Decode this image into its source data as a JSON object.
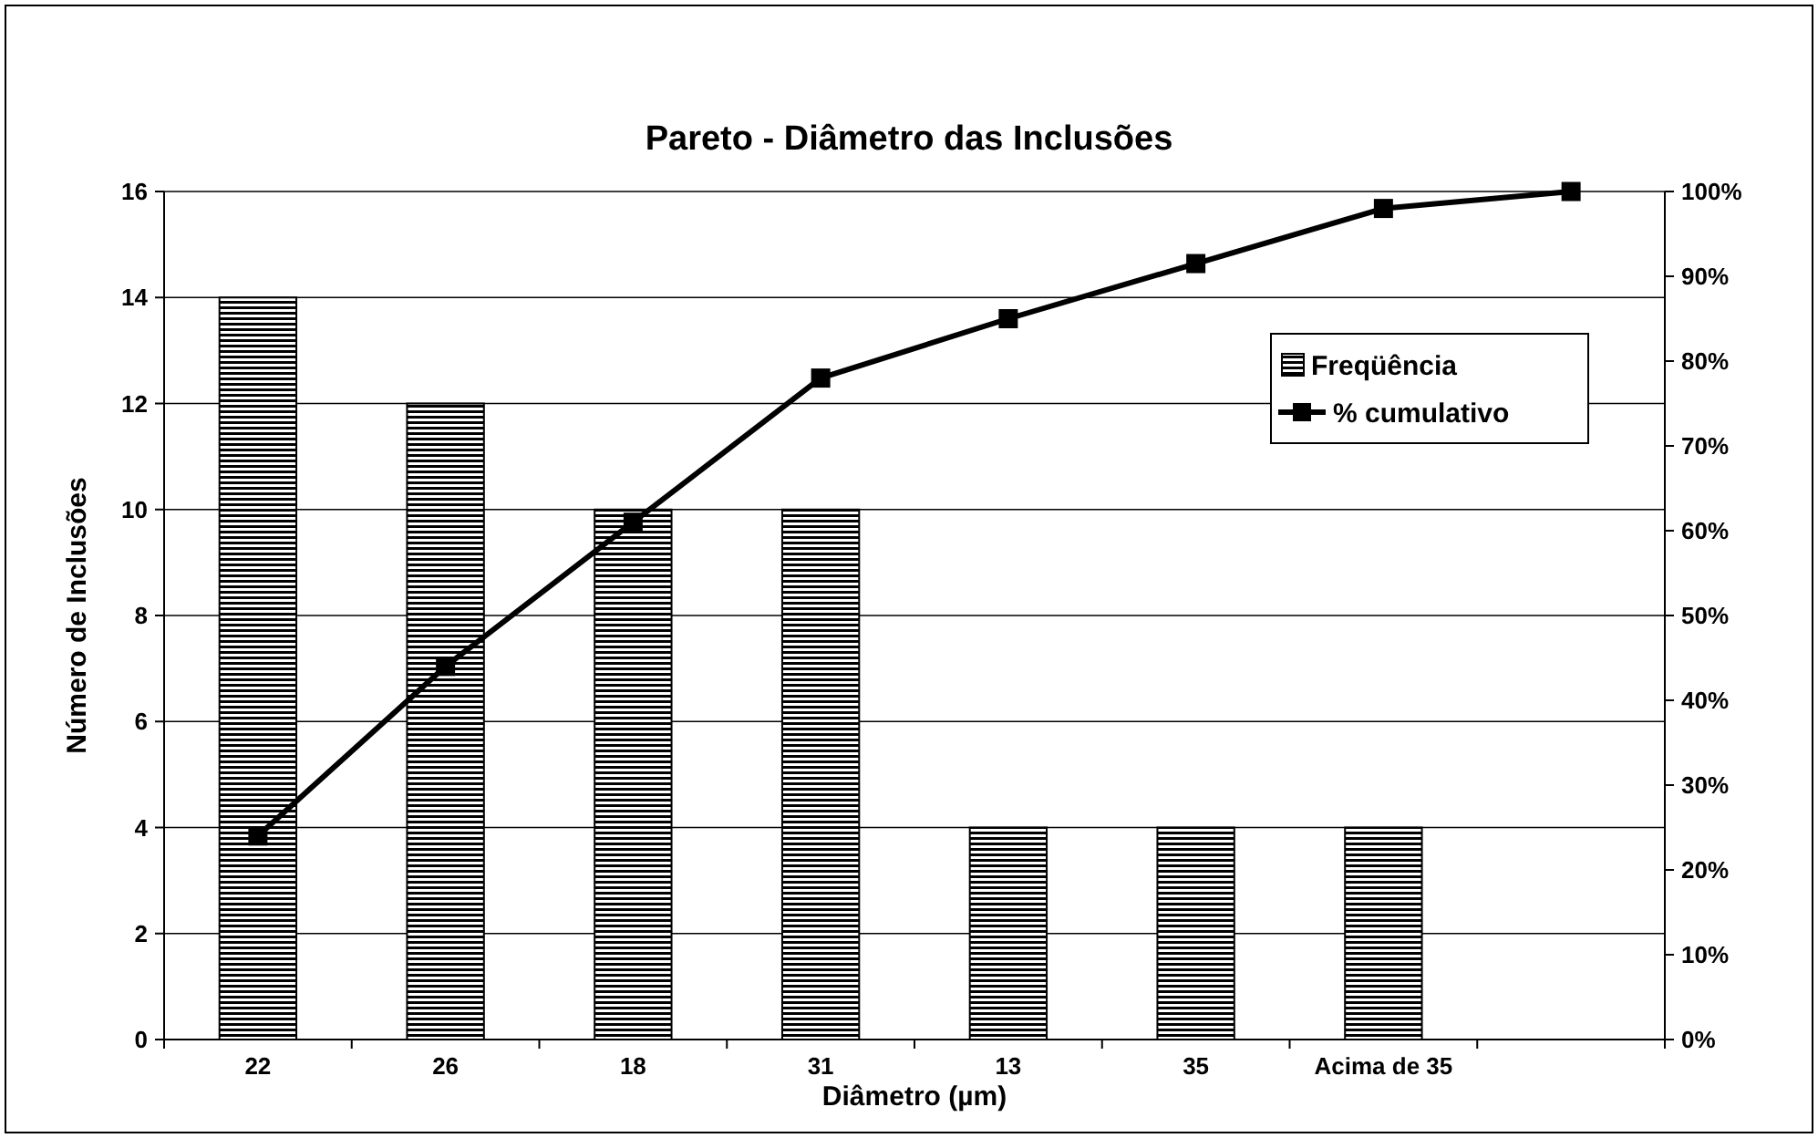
{
  "chart_data": {
    "type": "bar",
    "title": "Pareto - Diâmetro das Inclusões",
    "xlabel": "Diâmetro (µm)",
    "ylabel": "Número de Inclusões",
    "categories": [
      "22",
      "26",
      "18",
      "31",
      "13",
      "35",
      "Acima de 35",
      null
    ],
    "series": [
      {
        "name": "Freqüência",
        "color": "#000000",
        "values": [
          14,
          12,
          10,
          10,
          4,
          4,
          4,
          null
        ]
      },
      {
        "name": "% cumulativo",
        "type": "line",
        "axis": "y2",
        "color": "#000000",
        "marker": "square",
        "values": [
          24,
          44,
          61,
          78,
          85,
          91.5,
          98,
          100
        ]
      }
    ],
    "ylim": [
      0,
      16
    ],
    "yticks": [
      0,
      2,
      4,
      6,
      8,
      10,
      12,
      14,
      16
    ],
    "y2lim": [
      0,
      100
    ],
    "y2ticks": [
      {
        "value": 0,
        "label": "0%"
      },
      {
        "value": 10,
        "label": "10%"
      },
      {
        "value": 20,
        "label": "20%"
      },
      {
        "value": 30,
        "label": "30%"
      },
      {
        "value": 40,
        "label": "40%"
      },
      {
        "value": 50,
        "label": "50%"
      },
      {
        "value": 60,
        "label": "60%"
      },
      {
        "value": 70,
        "label": "70%"
      },
      {
        "value": 80,
        "label": "80%"
      },
      {
        "value": 90,
        "label": "90%"
      },
      {
        "value": 100,
        "label": "100%"
      }
    ],
    "grid": "y",
    "legend": "right"
  }
}
